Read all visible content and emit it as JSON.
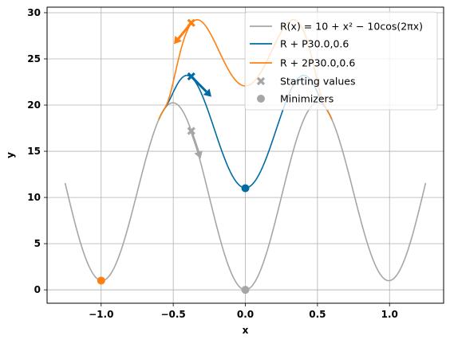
{
  "chart_data": {
    "type": "line",
    "xlabel": "x",
    "ylabel": "y",
    "xlim": [
      -1.375,
      1.375
    ],
    "ylim": [
      -1.45,
      30.6
    ],
    "xticks": [
      -1.0,
      -0.5,
      0.0,
      0.5,
      1.0
    ],
    "xtick_labels": [
      "−1.0",
      "−0.5",
      "0.0",
      "0.5",
      "1.0"
    ],
    "yticks": [
      0,
      5,
      10,
      15,
      20,
      25,
      30
    ],
    "ytick_labels": [
      "0",
      "5",
      "10",
      "15",
      "20",
      "25",
      "30"
    ],
    "grid": true,
    "legend_position": "top-right",
    "series": [
      {
        "name": "R(x) = 10 + x² − 10cos(2πx)",
        "kind": "line",
        "color": "#a6a6a6",
        "x_range": [
          -1.25,
          1.25
        ],
        "offset_scale": 0
      },
      {
        "name": "R + P30.0,0.6",
        "kind": "line",
        "color": "#006ba4",
        "x_range": [
          -0.6,
          0.6
        ],
        "offset_scale": 1
      },
      {
        "name": "R + 2P30.0,0.6",
        "kind": "line",
        "color": "#ff800e",
        "x_range": [
          -0.6,
          0.6
        ],
        "offset_scale": 2
      }
    ],
    "starting_values": {
      "name": "Starting values",
      "points": [
        {
          "x": -0.375,
          "y": 17.2,
          "color": "#a6a6a6"
        },
        {
          "x": -0.375,
          "y": 23.1,
          "color": "#006ba4"
        },
        {
          "x": -0.375,
          "y": 28.9,
          "color": "#ff800e"
        }
      ]
    },
    "arrows": [
      {
        "x": -0.375,
        "y": 17.2,
        "dx": 0.065,
        "dy": -3.0,
        "color": "#a6a6a6"
      },
      {
        "x": -0.375,
        "y": 23.1,
        "dx": 0.14,
        "dy": -2.2,
        "color": "#006ba4"
      },
      {
        "x": -0.375,
        "y": 28.9,
        "dx": -0.12,
        "dy": -2.3,
        "color": "#ff800e"
      }
    ],
    "minimizers": {
      "name": "Minimizers",
      "points": [
        {
          "x": 0.0,
          "y": 0.0,
          "color": "#a6a6a6"
        },
        {
          "x": 0.0,
          "y": 11.0,
          "color": "#006ba4"
        },
        {
          "x": -1.0,
          "y": 1.0,
          "color": "#ff800e"
        }
      ]
    },
    "legend": [
      {
        "label": "R(x) = 10 + x² − 10cos(2πx)",
        "marker": "line",
        "color": "#a6a6a6"
      },
      {
        "label": "R + P30.0,0.6",
        "marker": "line",
        "color": "#006ba4"
      },
      {
        "label": "R + 2P30.0,0.6",
        "marker": "line",
        "color": "#ff800e"
      },
      {
        "label": "Starting values",
        "marker": "x",
        "color": "#a6a6a6"
      },
      {
        "label": "Minimizers",
        "marker": "circle",
        "color": "#a6a6a6"
      }
    ]
  }
}
